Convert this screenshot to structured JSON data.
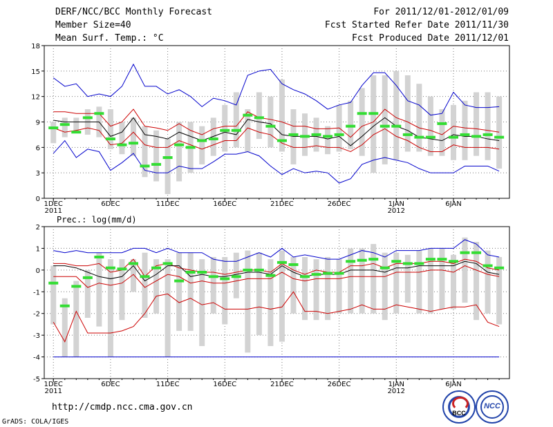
{
  "header": {
    "title": "DERF/NCC/BCC Monthly Forecast",
    "member_size": "Member Size=40",
    "variable1": "Mean Surf. Temp.: °C",
    "forecast_period": "For 2011/12/01-2012/01/09",
    "started": "Fcst Started Refer Date 2011/11/30",
    "produced": "Fcst Produced Date 2011/12/01"
  },
  "footer": {
    "url": "http://cmdp.ncc.cma.gov.cn",
    "credit": "GrADS: COLA/IGES"
  },
  "logos": {
    "bcc_text": "BCC",
    "ncc_text": "NCC"
  },
  "colors": {
    "max_min": "#0000cc",
    "spread": "#cc0000",
    "mean": "#000000",
    "observed": "#33dd33",
    "box": "#d3d3d3"
  },
  "chart_data": [
    {
      "type": "box-range",
      "title": "Mean Surf. Temp.: °C",
      "ylim": [
        0,
        18
      ],
      "yticks": [
        0,
        3,
        6,
        9,
        12,
        15,
        18
      ],
      "xlabels": [
        {
          "day": 1,
          "label": "1DEC",
          "sub": "2011"
        },
        {
          "day": 6,
          "label": "6DEC"
        },
        {
          "day": 11,
          "label": "11DEC"
        },
        {
          "day": 16,
          "label": "16DEC"
        },
        {
          "day": 21,
          "label": "21DEC"
        },
        {
          "day": 26,
          "label": "26DEC"
        },
        {
          "day": 31,
          "label": "1JAN",
          "sub": "2012"
        },
        {
          "day": 36,
          "label": "6JAN"
        }
      ],
      "days": [
        1,
        2,
        3,
        4,
        5,
        6,
        7,
        8,
        9,
        10,
        11,
        12,
        13,
        14,
        15,
        16,
        17,
        18,
        19,
        20,
        21,
        22,
        23,
        24,
        25,
        26,
        27,
        28,
        29,
        30,
        31,
        32,
        33,
        34,
        35,
        36,
        37,
        38,
        39,
        40
      ],
      "box_low": [
        6.5,
        7.2,
        7.8,
        7.5,
        7.2,
        5.8,
        5.2,
        5.0,
        2.5,
        2.0,
        0.5,
        2.0,
        3.0,
        4.0,
        5.0,
        5.5,
        6.0,
        5.5,
        7.0,
        6.0,
        5.5,
        4.0,
        5.0,
        5.5,
        5.2,
        5.5,
        5.8,
        5.0,
        3.0,
        4.0,
        4.5,
        5.5,
        5.5,
        5.0,
        5.0,
        4.5,
        4.5,
        5.0,
        4.5,
        3.5
      ],
      "box_high": [
        9.0,
        9.5,
        9.5,
        10.5,
        10.8,
        10.5,
        9.0,
        9.5,
        8.5,
        8.0,
        7.0,
        9.0,
        9.0,
        8.5,
        9.5,
        11.0,
        12.5,
        10.5,
        12.5,
        12.0,
        14.0,
        10.5,
        10.0,
        9.5,
        8.5,
        11.0,
        11.5,
        13.0,
        14.5,
        14.5,
        15.0,
        14.5,
        13.5,
        12.0,
        10.5,
        11.0,
        11.5,
        12.5,
        12.5,
        12.0
      ],
      "observed": [
        8.3,
        8.7,
        7.8,
        9.5,
        10.0,
        7.0,
        6.3,
        6.5,
        3.8,
        4.0,
        4.8,
        6.3,
        6.0,
        6.8,
        7.0,
        8.0,
        8.0,
        9.8,
        9.5,
        8.5,
        6.8,
        7.5,
        7.3,
        7.5,
        7.3,
        7.5,
        8.5,
        10.0,
        10.0,
        8.5,
        8.5,
        7.5,
        7.2,
        7.2,
        8.8,
        7.2,
        7.5,
        7.3,
        7.5,
        7.2
      ],
      "max": [
        14.2,
        13.2,
        13.5,
        12.0,
        12.3,
        12.0,
        13.2,
        15.8,
        13.2,
        13.2,
        12.3,
        12.8,
        12.0,
        10.8,
        11.8,
        11.5,
        11.0,
        14.5,
        15.0,
        15.2,
        13.5,
        12.8,
        12.3,
        11.5,
        10.5,
        11.0,
        11.3,
        13.3,
        14.8,
        14.8,
        13.3,
        11.5,
        11.0,
        9.8,
        10.0,
        12.5,
        11.0,
        10.7,
        10.7,
        10.8
      ],
      "min": [
        5.3,
        6.8,
        4.8,
        5.8,
        5.5,
        3.3,
        4.2,
        5.3,
        3.3,
        3.0,
        3.0,
        3.8,
        3.5,
        3.5,
        4.3,
        5.2,
        5.2,
        5.5,
        5.0,
        3.8,
        2.8,
        3.5,
        3.0,
        3.2,
        3.0,
        1.8,
        2.3,
        4.0,
        4.5,
        4.8,
        4.5,
        4.2,
        3.5,
        3.0,
        3.0,
        3.0,
        3.8,
        3.8,
        3.8,
        3.2
      ],
      "upper": [
        10.2,
        10.2,
        10.0,
        10.0,
        10.0,
        8.5,
        9.0,
        10.5,
        8.5,
        8.3,
        8.0,
        8.8,
        8.0,
        7.5,
        8.2,
        8.5,
        8.5,
        10.2,
        9.5,
        9.3,
        9.0,
        8.5,
        8.5,
        8.2,
        8.2,
        8.3,
        7.2,
        8.5,
        9.0,
        10.5,
        9.5,
        9.0,
        8.3,
        8.0,
        7.5,
        8.5,
        8.3,
        8.2,
        8.0,
        7.8
      ],
      "mean": [
        9.2,
        9.0,
        9.0,
        9.0,
        9.0,
        7.3,
        7.8,
        9.5,
        7.5,
        7.3,
        7.0,
        7.8,
        7.3,
        6.8,
        7.3,
        7.8,
        7.5,
        9.3,
        9.0,
        8.8,
        7.5,
        7.3,
        7.3,
        7.3,
        7.0,
        7.3,
        6.2,
        7.3,
        8.5,
        9.5,
        8.5,
        8.0,
        7.2,
        7.0,
        6.8,
        7.5,
        7.3,
        7.3,
        7.0,
        6.8
      ],
      "lower": [
        8.3,
        7.8,
        8.0,
        8.3,
        8.0,
        6.3,
        6.5,
        7.8,
        6.3,
        6.0,
        6.0,
        6.8,
        6.3,
        5.8,
        6.3,
        6.8,
        6.8,
        8.3,
        7.8,
        7.5,
        6.5,
        6.0,
        6.0,
        6.2,
        6.0,
        6.0,
        5.5,
        6.3,
        7.5,
        8.2,
        7.3,
        6.8,
        6.0,
        5.5,
        5.5,
        6.3,
        6.0,
        6.0,
        6.0,
        5.8
      ]
    },
    {
      "type": "box-range",
      "title": "Prec.: log(mm/d)",
      "ylim": [
        -5,
        2
      ],
      "yticks": [
        -5,
        -4,
        -3,
        -2,
        -1,
        0,
        1,
        2
      ],
      "xlabels": [
        {
          "day": 1,
          "label": "1DEC",
          "sub": "2011"
        },
        {
          "day": 6,
          "label": "6DEC"
        },
        {
          "day": 11,
          "label": "11DEC"
        },
        {
          "day": 16,
          "label": "16DEC"
        },
        {
          "day": 21,
          "label": "21DEC"
        },
        {
          "day": 26,
          "label": "26DEC"
        },
        {
          "day": 31,
          "label": "1JAN",
          "sub": "2012"
        },
        {
          "day": 36,
          "label": "6JAN"
        }
      ],
      "days": [
        1,
        2,
        3,
        4,
        5,
        6,
        7,
        8,
        9,
        10,
        11,
        12,
        13,
        14,
        15,
        16,
        17,
        18,
        19,
        20,
        21,
        22,
        23,
        24,
        25,
        26,
        27,
        28,
        29,
        30,
        31,
        32,
        33,
        34,
        35,
        36,
        37,
        38,
        39,
        40
      ],
      "box_low": [
        -2.5,
        -4.0,
        -4.0,
        -2.2,
        -2.6,
        -4.0,
        -2.3,
        -1.0,
        -2.2,
        -2.0,
        -4.0,
        -2.8,
        -2.8,
        -3.5,
        -2.0,
        -2.5,
        -1.3,
        -3.8,
        -3.0,
        -3.5,
        -3.3,
        -2.0,
        -2.3,
        -2.3,
        -2.3,
        -2.0,
        -2.0,
        -2.0,
        -2.0,
        -2.3,
        -2.0,
        -1.5,
        -2.0,
        -2.0,
        -1.8,
        -1.8,
        -1.5,
        -2.3,
        -2.0,
        -2.5
      ],
      "box_high": [
        0.2,
        -1.3,
        -0.5,
        0.0,
        0.8,
        0.5,
        0.5,
        0.5,
        0.8,
        0.5,
        0.5,
        0.8,
        0.8,
        0.5,
        0.6,
        0.6,
        0.8,
        0.9,
        0.8,
        0.5,
        0.9,
        0.6,
        0.6,
        0.5,
        0.6,
        0.5,
        1.0,
        1.0,
        1.2,
        0.8,
        0.8,
        0.7,
        0.9,
        1.0,
        1.0,
        0.7,
        1.5,
        1.3,
        0.9,
        0.6
      ],
      "observed": [
        -0.6,
        -1.65,
        -0.75,
        -0.35,
        0.6,
        0.1,
        0.05,
        0.3,
        -0.3,
        0.1,
        0.3,
        -0.5,
        -0.1,
        -0.1,
        -0.3,
        -0.4,
        -0.3,
        0.0,
        0.0,
        -0.25,
        0.35,
        0.25,
        -0.3,
        -0.2,
        -0.15,
        -0.15,
        0.4,
        0.45,
        0.5,
        0.1,
        0.4,
        0.3,
        0.3,
        0.5,
        0.5,
        0.4,
        0.8,
        0.8,
        0.2,
        0.1
      ],
      "max": [
        0.9,
        0.8,
        0.9,
        0.8,
        0.8,
        0.8,
        0.8,
        1.0,
        1.0,
        0.8,
        1.0,
        0.8,
        0.8,
        0.8,
        0.5,
        0.4,
        0.4,
        0.6,
        0.8,
        0.6,
        1.0,
        0.6,
        0.7,
        0.6,
        0.5,
        0.5,
        0.7,
        0.9,
        0.8,
        0.6,
        0.9,
        0.9,
        0.9,
        1.0,
        1.0,
        1.0,
        1.4,
        1.2,
        0.7,
        0.6
      ],
      "min": [
        -4.0,
        -4.0,
        -4.0,
        -4.0,
        -4.0,
        -4.0,
        -4.0,
        -4.0,
        -4.0,
        -4.0,
        -4.0,
        -4.0,
        -4.0,
        -4.0,
        -4.0,
        -4.0,
        -4.0,
        -4.0,
        -4.0,
        -4.0,
        -4.0,
        -4.0,
        -4.0,
        -4.0,
        -4.0,
        -4.0,
        -4.0,
        -4.0,
        -4.0,
        -4.0,
        -4.0,
        -4.0,
        -4.0,
        -4.0,
        -4.0,
        -4.0,
        -4.0,
        -4.0,
        -4.0,
        -4.0
      ],
      "upper": [
        0.3,
        0.3,
        0.2,
        0.2,
        0.3,
        -0.1,
        0.0,
        0.5,
        -0.3,
        0.2,
        0.3,
        0.1,
        0.0,
        -0.1,
        -0.1,
        -0.2,
        -0.1,
        0.0,
        0.0,
        -0.1,
        0.3,
        0.0,
        -0.2,
        0.0,
        -0.1,
        -0.1,
        0.2,
        0.2,
        0.3,
        0.1,
        0.3,
        0.3,
        0.3,
        0.4,
        0.4,
        0.3,
        0.5,
        0.4,
        0.1,
        0.0
      ],
      "mean": [
        0.2,
        0.2,
        0.1,
        -0.1,
        -0.3,
        -0.4,
        -0.3,
        0.2,
        -0.5,
        -0.2,
        0.2,
        0.2,
        -0.3,
        -0.2,
        -0.3,
        -0.3,
        -0.2,
        -0.1,
        -0.1,
        -0.2,
        0.2,
        -0.1,
        -0.3,
        -0.2,
        -0.2,
        -0.2,
        0.0,
        0.0,
        0.0,
        -0.1,
        0.1,
        0.1,
        0.2,
        0.2,
        0.2,
        0.2,
        0.4,
        0.3,
        -0.1,
        -0.2
      ],
      "lower": [
        -0.3,
        -0.3,
        -0.3,
        -0.8,
        -0.6,
        -0.7,
        -0.6,
        -0.2,
        -0.8,
        -0.5,
        -0.2,
        -0.3,
        -0.6,
        -0.5,
        -0.6,
        -0.6,
        -0.5,
        -0.4,
        -0.4,
        -0.4,
        -0.1,
        -0.4,
        -0.5,
        -0.4,
        -0.4,
        -0.4,
        -0.3,
        -0.3,
        -0.3,
        -0.3,
        -0.1,
        -0.1,
        -0.1,
        0.0,
        0.0,
        -0.1,
        0.2,
        0.0,
        -0.2,
        -0.3
      ],
      "spread_low": [
        -2.4,
        -3.3,
        -1.9,
        -2.9,
        -2.9,
        -2.9,
        -2.8,
        -2.6,
        -2.0,
        -1.2,
        -1.1,
        -1.5,
        -1.3,
        -1.6,
        -1.5,
        -1.8,
        -1.8,
        -1.8,
        -1.7,
        -1.8,
        -1.7,
        -1.0,
        -1.9,
        -1.9,
        -2.0,
        -1.9,
        -1.8,
        -1.6,
        -1.8,
        -1.8,
        -1.6,
        -1.7,
        -1.8,
        -1.9,
        -1.8,
        -1.7,
        -1.7,
        -1.6,
        -2.4,
        -2.6
      ]
    }
  ]
}
